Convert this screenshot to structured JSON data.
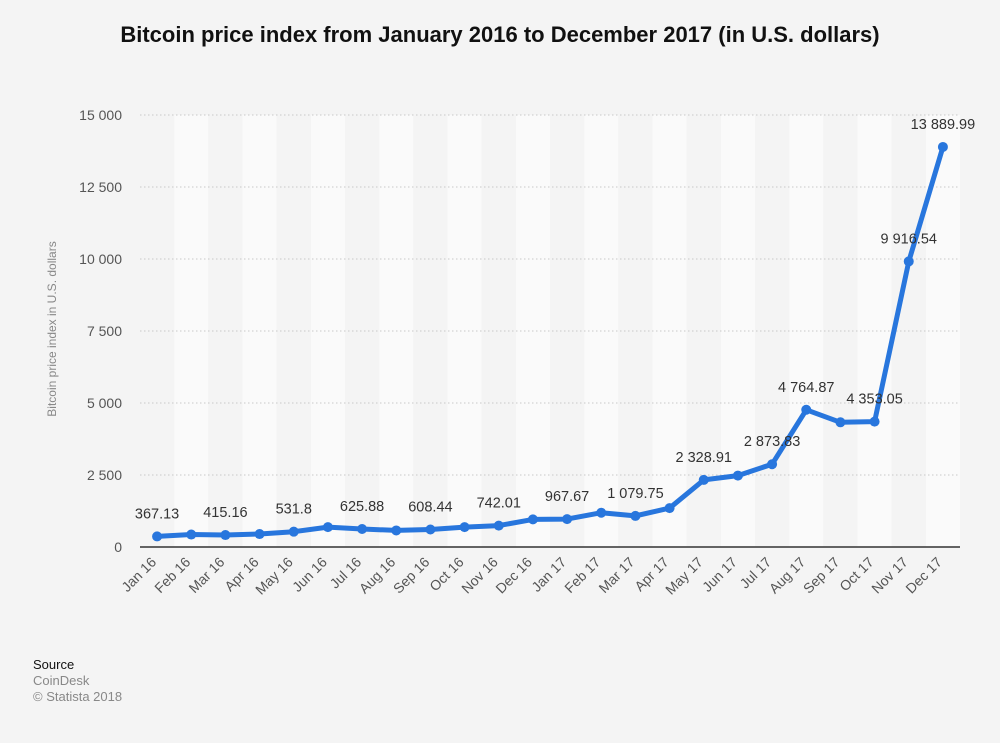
{
  "chart_data": {
    "type": "line",
    "title": "Bitcoin price index from January 2016 to December 2017 (in U.S. dollars)",
    "ylabel": "Bitcoin price index in U.S. dollars",
    "xlabel": "",
    "ylim": [
      0,
      15000
    ],
    "yticks": [
      {
        "value": 0,
        "label": "0"
      },
      {
        "value": 2500,
        "label": "2 500"
      },
      {
        "value": 5000,
        "label": "5 000"
      },
      {
        "value": 7500,
        "label": "7 500"
      },
      {
        "value": 10000,
        "label": "10 000"
      },
      {
        "value": 12500,
        "label": "12 500"
      },
      {
        "value": 15000,
        "label": "15 000"
      }
    ],
    "grid": true,
    "line_color": "#2876dd",
    "categories": [
      "Jan 16",
      "Feb 16",
      "Mar 16",
      "Apr 16",
      "May 16",
      "Jun 16",
      "Jul 16",
      "Aug 16",
      "Sep 16",
      "Oct 16",
      "Nov 16",
      "Dec 16",
      "Jan 17",
      "Feb 17",
      "Mar 17",
      "Apr 17",
      "May 17",
      "Jun 17",
      "Jul 17",
      "Aug 17",
      "Sep 17",
      "Oct 17",
      "Nov 17",
      "Dec 17"
    ],
    "values": [
      367.13,
      433,
      415.16,
      450,
      531.8,
      690,
      625.88,
      575,
      608.44,
      690,
      742.01,
      960,
      967.67,
      1190,
      1079.75,
      1350,
      2328.91,
      2480,
      2873.83,
      4764.87,
      4330,
      4353.05,
      9916.54,
      13889.99
    ],
    "data_labels": [
      {
        "index": 0,
        "label": "367.13"
      },
      {
        "index": 2,
        "label": "415.16"
      },
      {
        "index": 4,
        "label": "531.8"
      },
      {
        "index": 6,
        "label": "625.88"
      },
      {
        "index": 8,
        "label": "608.44"
      },
      {
        "index": 10,
        "label": "742.01"
      },
      {
        "index": 12,
        "label": "967.67"
      },
      {
        "index": 14,
        "label": "1 079.75"
      },
      {
        "index": 16,
        "label": "2 328.91"
      },
      {
        "index": 18,
        "label": "2 873.83"
      },
      {
        "index": 19,
        "label": "4 764.87"
      },
      {
        "index": 21,
        "label": "4 353.05"
      },
      {
        "index": 22,
        "label": "9 916.54"
      },
      {
        "index": 23,
        "label": "13 889.99"
      }
    ]
  },
  "source": {
    "label": "Source",
    "name": "CoinDesk",
    "copyright": "© Statista 2018"
  }
}
